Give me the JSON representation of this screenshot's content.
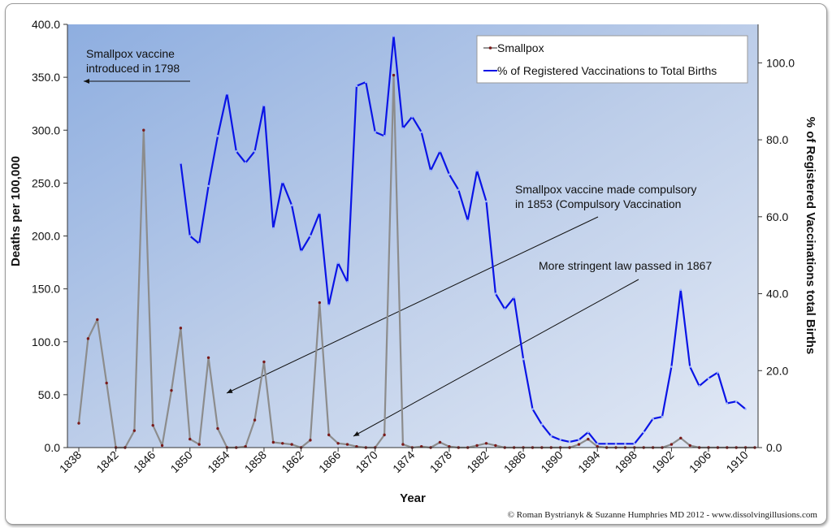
{
  "chart_data": {
    "type": "line",
    "xlabel": "Year",
    "ylabel_left": "Deaths per 100,000",
    "ylabel_right": "% of Registered Vaccinations total Births",
    "xlim": [
      1838,
      1911
    ],
    "ylim_left": [
      0,
      400
    ],
    "ylim_right": [
      0,
      110
    ],
    "x_ticks": [
      "1838",
      "1842",
      "1846",
      "1850",
      "1854",
      "1858",
      "1862",
      "1866",
      "1870",
      "1874",
      "1878",
      "1882",
      "1886",
      "1890",
      "1894",
      "1898",
      "1902",
      "1906",
      "1910"
    ],
    "y_ticks_left": [
      "0.0",
      "50.0",
      "100.0",
      "150.0",
      "200.0",
      "250.0",
      "300.0",
      "350.0",
      "400.0"
    ],
    "y_ticks_right": [
      "0.0",
      "20.0",
      "40.0",
      "60.0",
      "80.0",
      "100.0"
    ],
    "legend_position": "top-right",
    "series": [
      {
        "name": "Smallpox",
        "axis": "left",
        "color": "#8c8c8c",
        "marker_color": "#7a1a1a",
        "x": [
          1838,
          1839,
          1840,
          1841,
          1842,
          1843,
          1844,
          1845,
          1846,
          1847,
          1848,
          1849,
          1850,
          1851,
          1852,
          1853,
          1854,
          1855,
          1856,
          1857,
          1858,
          1859,
          1860,
          1861,
          1862,
          1863,
          1864,
          1865,
          1866,
          1867,
          1868,
          1869,
          1870,
          1871,
          1872,
          1873,
          1874,
          1875,
          1876,
          1877,
          1878,
          1879,
          1880,
          1881,
          1882,
          1883,
          1884,
          1885,
          1886,
          1887,
          1888,
          1889,
          1890,
          1891,
          1892,
          1893,
          1894,
          1895,
          1896,
          1897,
          1898,
          1899,
          1900,
          1901,
          1902,
          1903,
          1904,
          1905,
          1906,
          1907,
          1908,
          1909,
          1910,
          1911
        ],
        "values": [
          23,
          103,
          121,
          61,
          0,
          0,
          16,
          300,
          21,
          2,
          54,
          113,
          8,
          3,
          85,
          18,
          0,
          0,
          1,
          26,
          81,
          5,
          4,
          3,
          0,
          7,
          137,
          12,
          4,
          3,
          1,
          0,
          0,
          12,
          352,
          3,
          0,
          1,
          0,
          5,
          1,
          0,
          0,
          2,
          4,
          2,
          0,
          0,
          0,
          0,
          0,
          0,
          0,
          0,
          3,
          8,
          1,
          0,
          0,
          0,
          0,
          0,
          0,
          0,
          3,
          9,
          2,
          0,
          0,
          0,
          0,
          0,
          0,
          0
        ]
      },
      {
        "name": "% of Registered Vaccinations to Total Births",
        "axis": "right",
        "color": "#0a14e6",
        "x": [
          1849,
          1850,
          1851,
          1852,
          1853,
          1854,
          1855,
          1856,
          1857,
          1858,
          1859,
          1860,
          1861,
          1862,
          1863,
          1864,
          1865,
          1866,
          1867,
          1868,
          1869,
          1870,
          1871,
          1872,
          1873,
          1874,
          1875,
          1876,
          1877,
          1878,
          1879,
          1880,
          1881,
          1882,
          1883,
          1884,
          1885,
          1886,
          1887,
          1888,
          1889,
          1890,
          1891,
          1892,
          1893,
          1894,
          1895,
          1896,
          1897,
          1898,
          1899,
          1900,
          1901,
          1902,
          1903,
          1904,
          1905,
          1906,
          1907,
          1908,
          1909,
          1910
        ],
        "values": [
          74,
          55,
          53,
          68,
          81,
          92,
          77,
          74,
          77,
          89,
          57,
          69,
          63,
          51,
          55,
          61,
          37,
          48,
          43,
          94,
          95,
          82,
          81,
          107,
          83,
          86,
          82,
          72,
          77,
          71,
          67,
          59,
          72,
          64,
          40,
          36,
          39,
          23,
          10,
          6,
          3,
          2,
          1.5,
          2,
          4,
          1,
          1,
          1,
          1,
          1,
          4,
          7.5,
          8,
          21,
          41,
          21,
          16,
          18,
          19.5,
          11.5,
          12,
          10
        ]
      }
    ],
    "annotations": [
      "Smallpox vaccine\nintroduced in 1798",
      "Smallpox vaccine made compulsory\nin 1853 (Compulsory Vaccination",
      "More stringent law passed in 1867"
    ]
  },
  "credit": "© Roman Bystrianyk & Suzanne Humphries MD 2012 - www.dissolvingillusions.com"
}
